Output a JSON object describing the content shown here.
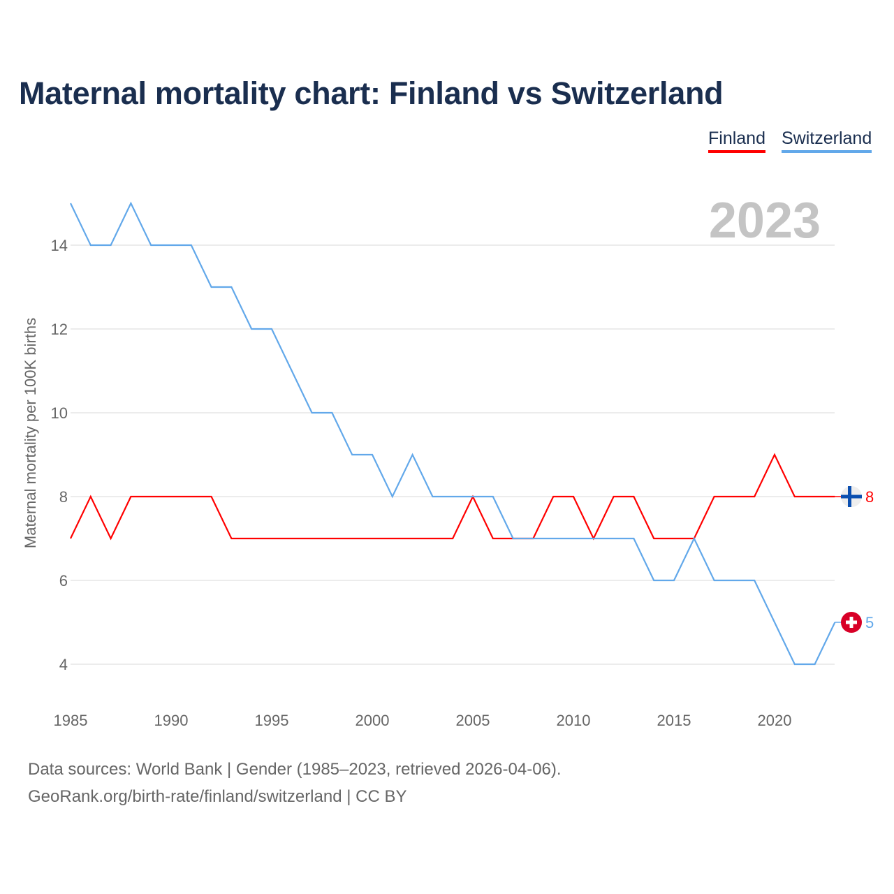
{
  "title": "Maternal mortality chart: Finland vs Switzerland",
  "legend": [
    "Finland",
    "Switzerland"
  ],
  "year_label": "2023",
  "footer": {
    "line1": "Data sources: World Bank | Gender (1985–2023, retrieved 2026-04-06).",
    "line2": "GeoRank.org/birth-rate/finland/switzerland | CC BY"
  },
  "chart_data": {
    "type": "line",
    "title": "Maternal mortality chart: Finland vs Switzerland",
    "xlabel": "",
    "ylabel": "Maternal mortality per 100K births",
    "xlim": [
      1985,
      2023
    ],
    "ylim": [
      3,
      15
    ],
    "xticks": [
      1985,
      1990,
      1995,
      2000,
      2005,
      2010,
      2015,
      2020
    ],
    "yticks": [
      4,
      6,
      8,
      10,
      12,
      14
    ],
    "grid": true,
    "legend_position": "top-right",
    "x": [
      1985,
      1986,
      1987,
      1988,
      1989,
      1990,
      1991,
      1992,
      1993,
      1994,
      1995,
      1996,
      1997,
      1998,
      1999,
      2000,
      2001,
      2002,
      2003,
      2004,
      2005,
      2006,
      2007,
      2008,
      2009,
      2010,
      2011,
      2012,
      2013,
      2014,
      2015,
      2016,
      2017,
      2018,
      2019,
      2020,
      2021,
      2022,
      2023
    ],
    "series": [
      {
        "name": "Finland",
        "color": "#ff0000",
        "end_label": "8",
        "values": [
          7,
          8,
          7,
          8,
          8,
          8,
          8,
          8,
          7,
          7,
          7,
          7,
          7,
          7,
          7,
          7,
          7,
          7,
          7,
          7,
          8,
          7,
          7,
          7,
          8,
          8,
          7,
          8,
          8,
          7,
          7,
          7,
          8,
          8,
          8,
          9,
          8,
          8,
          8
        ]
      },
      {
        "name": "Switzerland",
        "color": "#62a8ea",
        "end_label": "5",
        "values": [
          15,
          14,
          14,
          15,
          14,
          14,
          14,
          13,
          13,
          12,
          12,
          11,
          10,
          10,
          9,
          9,
          8,
          9,
          8,
          8,
          8,
          8,
          7,
          7,
          7,
          7,
          7,
          7,
          7,
          6,
          6,
          7,
          6,
          6,
          6,
          5,
          4,
          4,
          5
        ]
      }
    ]
  }
}
